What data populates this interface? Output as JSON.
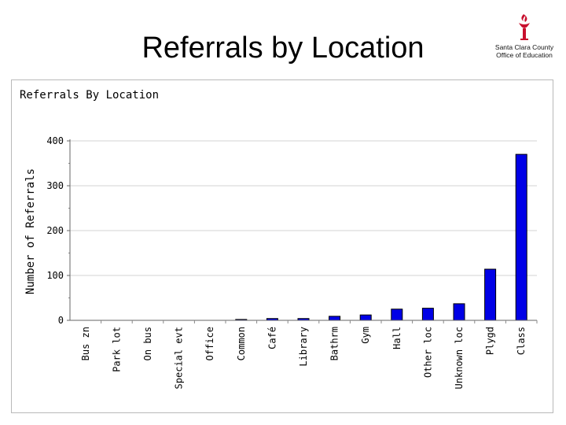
{
  "slide": {
    "title": "Referrals by Location",
    "logo": {
      "org_line1": "Santa Clara County",
      "org_line2": "Office of Education",
      "icon": "torch-icon",
      "accent_color": "#c8102e"
    }
  },
  "chart_data": {
    "type": "bar",
    "title": "Referrals By Location",
    "ylabel": "Number of Referrals",
    "xlabel": "",
    "categories": [
      "Bus zn",
      "Park lot",
      "On bus",
      "Special evt",
      "Office",
      "Common",
      "Café",
      "Library",
      "Bathrm",
      "Gym",
      "Hall",
      "Other loc",
      "Unknown loc",
      "Plygd",
      "Class"
    ],
    "values": [
      0,
      0,
      0,
      0,
      0,
      2,
      4,
      4,
      9,
      12,
      25,
      27,
      37,
      114,
      370
    ],
    "ylim": [
      0,
      400
    ],
    "yticks": [
      0,
      100,
      200,
      300,
      400
    ],
    "grid": true,
    "bar_color": "#0000e6",
    "legend": "none"
  }
}
